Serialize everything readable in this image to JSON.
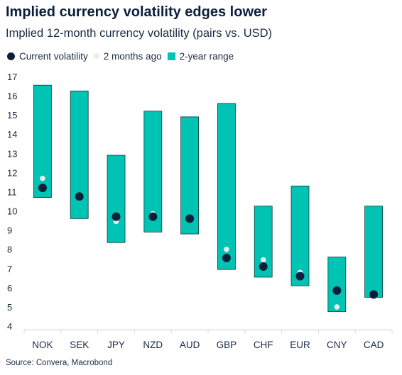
{
  "chart_data": {
    "type": "range-dot",
    "title": "Implied currency volatility edges lower",
    "subtitle": "Implied 12-month currency volatility (pairs vs. USD)",
    "categories": [
      "NOK",
      "SEK",
      "JPY",
      "NZD",
      "AUD",
      "GBP",
      "CHF",
      "EUR",
      "CNY",
      "CAD"
    ],
    "series": [
      {
        "name": "Current volatility",
        "kind": "dot",
        "color": "#0b1f3a",
        "values": [
          11.2,
          10.75,
          9.7,
          9.7,
          9.6,
          7.55,
          7.1,
          6.6,
          5.85,
          5.65
        ]
      },
      {
        "name": "2 months ago",
        "kind": "dot",
        "color": "#e8ecef",
        "values": [
          11.7,
          10.65,
          9.45,
          9.85,
          9.6,
          8.0,
          7.45,
          6.8,
          5.0,
          5.65
        ]
      },
      {
        "name": "2-year range",
        "kind": "range",
        "color": "#00c4b3",
        "low": [
          10.7,
          9.6,
          8.35,
          8.9,
          8.8,
          6.95,
          6.55,
          6.1,
          4.75,
          5.5
        ],
        "high": [
          16.55,
          16.25,
          12.9,
          15.2,
          14.9,
          15.6,
          10.25,
          11.3,
          7.6,
          10.25
        ]
      }
    ],
    "ylim": [
      4,
      17
    ],
    "yticks": [
      4,
      5,
      6,
      7,
      8,
      9,
      10,
      11,
      12,
      13,
      14,
      15,
      16,
      17
    ],
    "grid": false,
    "legend": "top-left",
    "source": "Source: Convera, Macrobond"
  }
}
